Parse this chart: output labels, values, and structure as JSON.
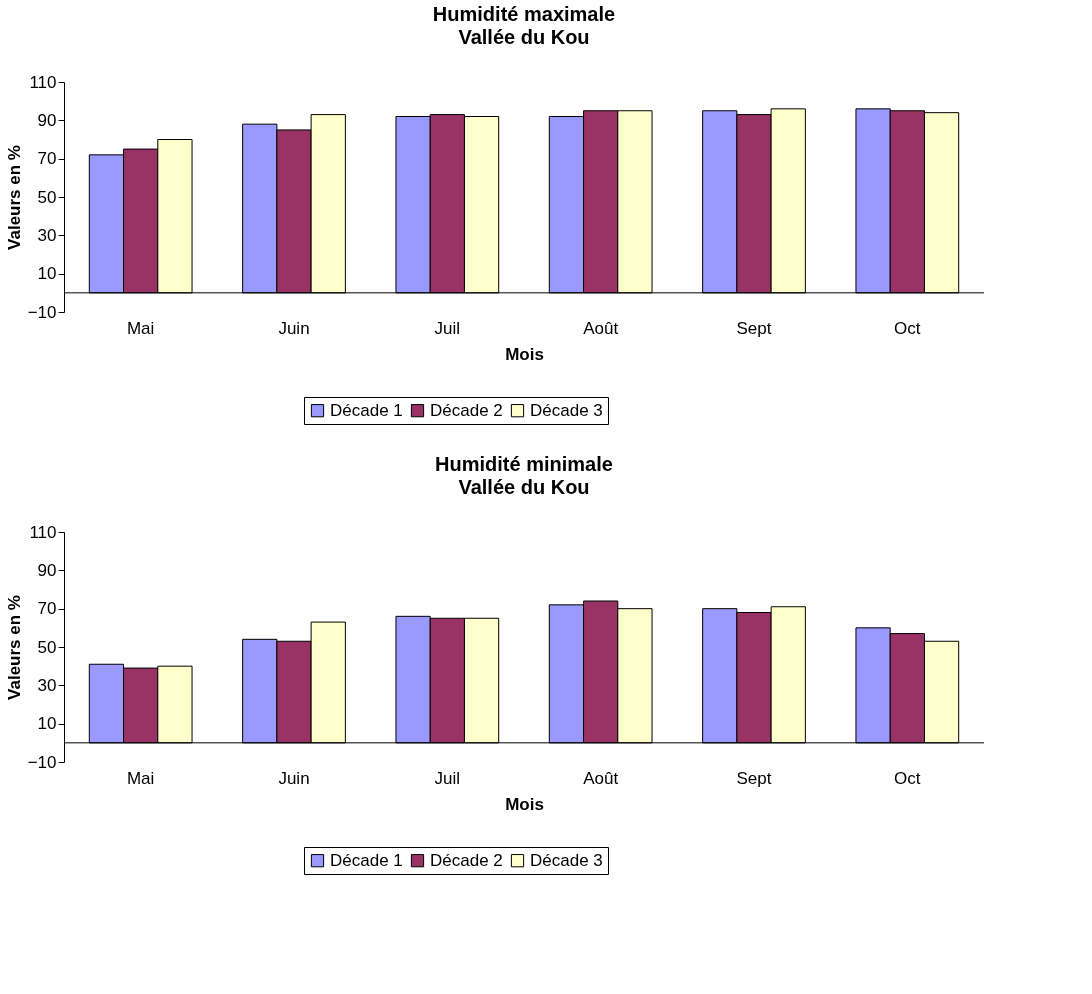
{
  "chart_data": [
    {
      "type": "bar",
      "title": "Humidité maximale",
      "subtitle": "Vallée du Kou",
      "xlabel": "Mois",
      "ylabel": "Valeurs en %",
      "categories": [
        "Mai",
        "Juin",
        "Juil",
        "Août",
        "Sept",
        "Oct"
      ],
      "series": [
        {
          "name": "Décade 1",
          "color": "#9999ff",
          "values": [
            72,
            88,
            92,
            92,
            95,
            96
          ]
        },
        {
          "name": "Décade 2",
          "color": "#993366",
          "values": [
            75,
            85,
            93,
            95,
            93,
            95
          ]
        },
        {
          "name": "Décade 3",
          "color": "#ffffcc",
          "values": [
            80,
            93,
            92,
            95,
            96,
            94
          ]
        }
      ],
      "ylim": [
        -10,
        110
      ],
      "yticks": [
        -10,
        10,
        30,
        50,
        70,
        90,
        110
      ],
      "grid": false,
      "legend": "bottom"
    },
    {
      "type": "bar",
      "title": "Humidité minimale",
      "subtitle": "Vallée du Kou",
      "xlabel": "Mois",
      "ylabel": "Valeurs en %",
      "categories": [
        "Mai",
        "Juin",
        "Juil",
        "Août",
        "Sept",
        "Oct"
      ],
      "series": [
        {
          "name": "Décade 1",
          "color": "#9999ff",
          "values": [
            41,
            54,
            66,
            72,
            70,
            60
          ]
        },
        {
          "name": "Décade 2",
          "color": "#993366",
          "values": [
            39,
            53,
            65,
            74,
            68,
            57
          ]
        },
        {
          "name": "Décade 3",
          "color": "#ffffcc",
          "values": [
            40,
            63,
            65,
            70,
            71,
            53
          ]
        }
      ],
      "ylim": [
        -10,
        110
      ],
      "yticks": [
        -10,
        10,
        30,
        50,
        70,
        90,
        110
      ],
      "grid": false,
      "legend": "bottom"
    }
  ]
}
